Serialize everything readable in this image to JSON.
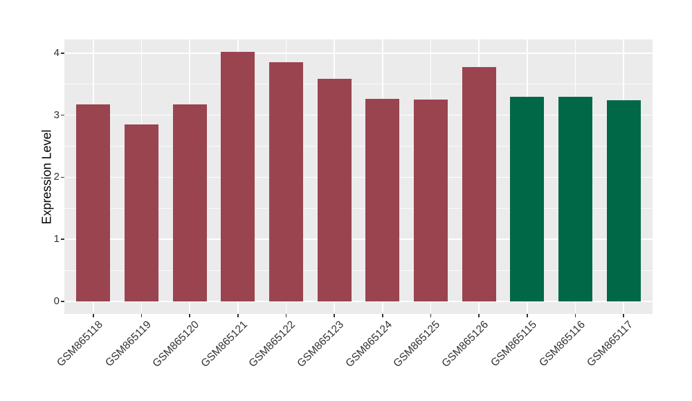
{
  "figure": {
    "background": "#FFFFFF",
    "panel_background": "#EBEBEB",
    "grid_color": "#FFFFFF",
    "tick_mark_color": "#333333",
    "axis_text_color": "#303030",
    "axis_title_color": "#000000"
  },
  "chart_data": {
    "type": "bar",
    "title": "",
    "xlabel": "",
    "ylabel": "Expression Level",
    "categories": [
      "GSM865118",
      "GSM865119",
      "GSM865120",
      "GSM865121",
      "GSM865122",
      "GSM865123",
      "GSM865124",
      "GSM865125",
      "GSM865126",
      "GSM865115",
      "GSM865116",
      "GSM865117"
    ],
    "values": [
      3.17,
      2.85,
      3.17,
      4.02,
      3.85,
      3.59,
      3.26,
      3.25,
      3.77,
      3.3,
      3.3,
      3.24
    ],
    "bar_colors": [
      "#9A4450",
      "#9A4450",
      "#9A4450",
      "#9A4450",
      "#9A4450",
      "#9A4450",
      "#9A4450",
      "#9A4450",
      "#9A4450",
      "#006747",
      "#006747",
      "#006747"
    ],
    "color_legend": {
      "maroon": "#9A4450",
      "green": "#006747"
    },
    "ylim": [
      -0.2,
      4.22
    ],
    "yticks": [
      0,
      1,
      2,
      3,
      4
    ],
    "yticks_minor": [
      0.5,
      1.5,
      2.5,
      3.5
    ],
    "grid": "major+minor, white on gray panel",
    "legend": "none",
    "bar_width_frac": 0.7,
    "x_label_angle": 45
  }
}
